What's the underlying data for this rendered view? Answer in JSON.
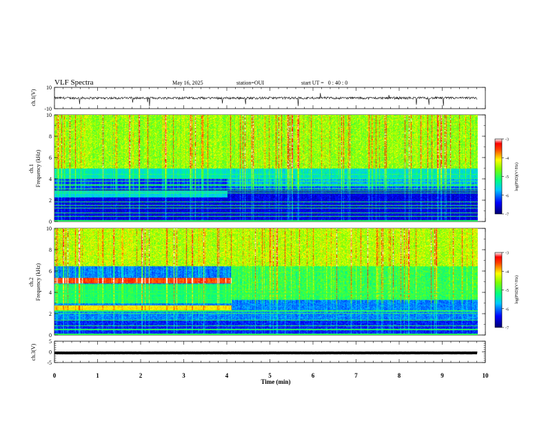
{
  "header": {
    "title": "VLF Spectra",
    "date": "May 16, 2025",
    "station": "station=OUI",
    "start": "start UT =   0 : 40 : 0"
  },
  "chart_data": [
    {
      "type": "line",
      "panel": "ch1-waveform",
      "ylabel": "ch.1(V)",
      "ylim": [
        -10,
        10
      ],
      "yticks": [
        10,
        -10
      ],
      "xlim": [
        0,
        10
      ],
      "x_extent": 9.82,
      "baseline": 0,
      "color": "#000000"
    },
    {
      "type": "heatmap",
      "panel": "ch1-spectrogram",
      "ylabel": "ch.1\nFrequency (kHz)",
      "ylim": [
        0,
        10
      ],
      "yticks": [
        0,
        2,
        4,
        6,
        8,
        10
      ],
      "xlim": [
        0,
        10
      ],
      "x_extent": 9.82,
      "colorbar": {
        "label": "log(PSD)(V²/Hz)",
        "range": [
          -7,
          -3
        ],
        "ticks": [
          -3,
          -4,
          -5,
          -6,
          -7
        ]
      }
    },
    {
      "type": "heatmap",
      "panel": "ch2-spectrogram",
      "ylabel": "ch.2\nFrequency (kHz)",
      "ylim": [
        0,
        10
      ],
      "yticks": [
        0,
        2,
        4,
        6,
        8,
        10
      ],
      "xlim": [
        0,
        10
      ],
      "x_extent": 9.82,
      "colorbar": {
        "label": "log(PSD)(V²/Hz)",
        "range": [
          -7,
          -3
        ],
        "ticks": [
          -3,
          -4,
          -5,
          -6,
          -7
        ]
      }
    },
    {
      "type": "line",
      "panel": "ch3-waveform",
      "ylabel": "ch.3(V)",
      "ylim": [
        -5,
        5
      ],
      "yticks": [
        5,
        0,
        -5
      ],
      "xlim": [
        0,
        10
      ],
      "x_extent": 9.82,
      "baseline": -0.5,
      "color": "#000000"
    }
  ],
  "xaxis": {
    "label": "Time (min)",
    "ticks": [
      0,
      1,
      2,
      3,
      4,
      5,
      6,
      7,
      8,
      9,
      10
    ]
  }
}
